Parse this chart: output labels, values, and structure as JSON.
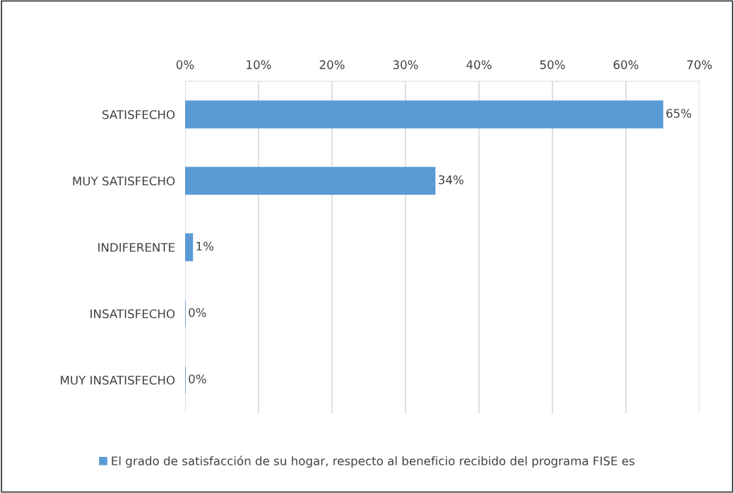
{
  "chart_data": {
    "type": "bar",
    "orientation": "horizontal",
    "categories": [
      "SATISFECHO",
      "MUY SATISFECHO",
      "INDIFERENTE",
      "INSATISFECHO",
      "MUY INSATISFECHO"
    ],
    "series": [
      {
        "name": "El grado de satisfacción de su hogar, respecto al beneficio recibido del programa FISE es",
        "color": "#5b9bd5",
        "values": [
          65,
          34,
          1,
          0,
          0
        ],
        "value_labels": [
          "65%",
          "34%",
          "1%",
          "0%",
          "0%"
        ]
      }
    ],
    "xlim": [
      0,
      70
    ],
    "xticks": [
      {
        "value": 0,
        "label": "0%"
      },
      {
        "value": 10,
        "label": "10%"
      },
      {
        "value": 20,
        "label": "20%"
      },
      {
        "value": 30,
        "label": "30%"
      },
      {
        "value": 40,
        "label": "40%"
      },
      {
        "value": 50,
        "label": "50%"
      },
      {
        "value": 60,
        "label": "60%"
      },
      {
        "value": 70,
        "label": "70%"
      }
    ],
    "grid": "x",
    "legend": "bottom"
  }
}
